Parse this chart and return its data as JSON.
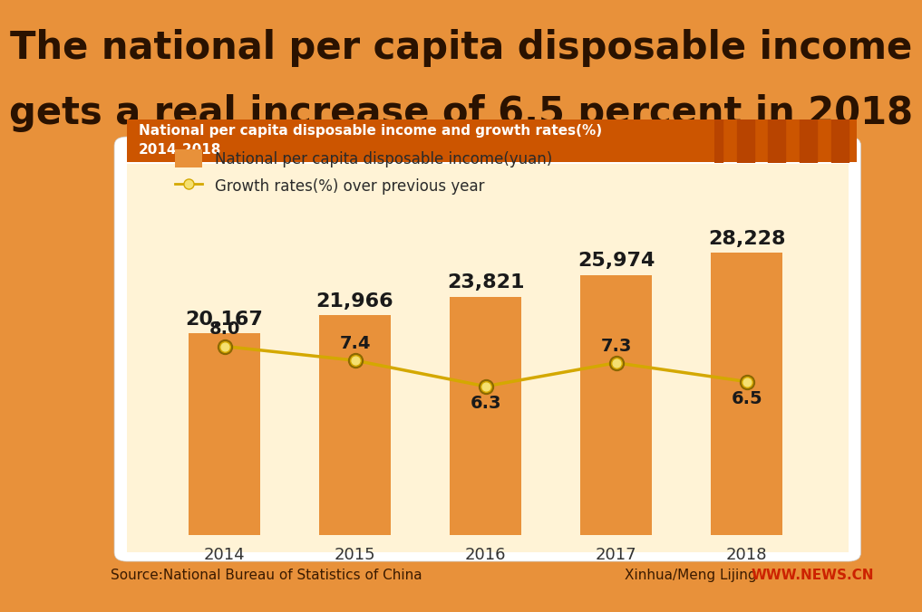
{
  "title_line1": "The national per capita disposable income",
  "title_line2": "gets a real increase of 6.5 percent in 2018",
  "subtitle": "National per capita disposable income and growth rates(%)\n2014-2018",
  "years": [
    2014,
    2015,
    2016,
    2017,
    2018
  ],
  "income": [
    20167,
    21966,
    23821,
    25974,
    28228
  ],
  "income_labels": [
    "20,167",
    "21,966",
    "23,821",
    "25,974",
    "28,228"
  ],
  "growth": [
    8.0,
    7.4,
    6.3,
    7.3,
    6.5
  ],
  "growth_labels": [
    "8.0",
    "7.4",
    "6.3",
    "7.3",
    "6.5"
  ],
  "bar_color": "#E8913A",
  "line_color": "#D4A800",
  "dot_outer_color": "#D4A800",
  "dot_inner_color": "#F5E070",
  "background_color": "#E8913A",
  "chart_bg_color": "#FFF3D6",
  "white_box_color": "#FFFFFF",
  "subtitle_bg_color": "#CC5500",
  "stripe_color": "#B84400",
  "title_color": "#2A1200",
  "source_text": "Source:National Bureau of Statistics of China",
  "credit_text": "Xinhua/Meng Lijing",
  "website": "WWW.NEWS.CN",
  "legend_bar_label": "National per capita disposable income(yuan)",
  "legend_line_label": "Growth rates(%) over previous year",
  "title_fontsize": 30,
  "subtitle_fontsize": 11,
  "income_label_fontsize": 16,
  "growth_label_fontsize": 14,
  "tick_fontsize": 13,
  "legend_fontsize": 12,
  "source_fontsize": 11
}
